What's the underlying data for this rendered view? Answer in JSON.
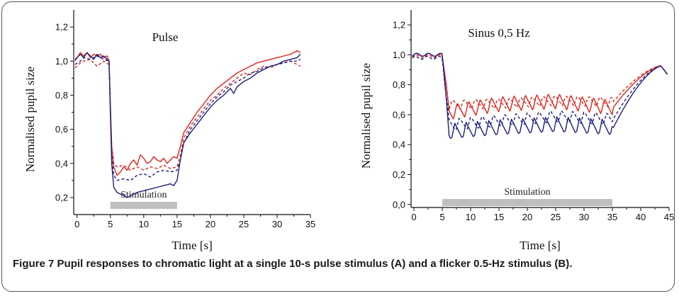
{
  "caption": {
    "label": "Figure 7",
    "text": "Pupil responses to chromatic light at a single 10-s pulse stimulus (A) and a flicker 0.5-Hz stimulus (B)."
  },
  "colors": {
    "red": "#e2231a",
    "blue": "#1d1e7c",
    "stim_bar": "#bfbfbf"
  },
  "chart_data": [
    {
      "type": "line",
      "title": "Pulse",
      "xlabel": "Time [s]",
      "ylabel": "Normalised pupil size",
      "xlim": [
        -0.5,
        35
      ],
      "ylim": [
        0.1,
        1.3
      ],
      "xticks": [
        0,
        5,
        10,
        15,
        20,
        25,
        30,
        35
      ],
      "yticks": [
        "0,2",
        "0,4",
        "0,6",
        "0,8",
        "1,0",
        "1,2"
      ],
      "ytick_values": [
        0.2,
        0.4,
        0.6,
        0.8,
        1.0,
        1.2
      ],
      "stimulation": {
        "label": "Stimulation",
        "start": 5,
        "end": 15
      },
      "series": [
        {
          "color": "#e2231a",
          "dash": false,
          "x": [
            -0.3,
            0.5,
            1,
            1.5,
            2,
            2.5,
            3,
            3.5,
            4,
            4.5,
            4.8,
            5,
            5.2,
            5.5,
            6,
            6.5,
            7,
            7.5,
            8,
            8.5,
            9,
            9.5,
            10,
            10.5,
            11,
            11.5,
            12,
            12.5,
            13,
            13.5,
            14,
            14.5,
            15,
            15.5,
            16,
            17,
            18,
            19,
            20,
            21,
            22,
            23,
            24,
            25,
            26,
            27,
            28,
            29,
            30,
            31,
            32,
            33,
            33.5
          ],
          "y": [
            1.0,
            1.05,
            1.03,
            1.05,
            1.02,
            1.04,
            1.03,
            1.04,
            1.02,
            1.03,
            1.0,
            0.75,
            0.5,
            0.38,
            0.33,
            0.35,
            0.38,
            0.36,
            0.4,
            0.42,
            0.39,
            0.45,
            0.43,
            0.4,
            0.41,
            0.44,
            0.42,
            0.41,
            0.43,
            0.4,
            0.42,
            0.44,
            0.43,
            0.5,
            0.58,
            0.64,
            0.7,
            0.75,
            0.8,
            0.84,
            0.87,
            0.9,
            0.93,
            0.95,
            0.97,
            0.99,
            1.0,
            1.01,
            1.02,
            1.03,
            1.04,
            1.06,
            1.05
          ]
        },
        {
          "color": "#e2231a",
          "dash": true,
          "x": [
            -0.3,
            0.5,
            1,
            2,
            3,
            4,
            4.8,
            5,
            5.2,
            5.5,
            6,
            7,
            8,
            9,
            10,
            11,
            12,
            13,
            14,
            15,
            15.5,
            16,
            17,
            18,
            19,
            20,
            21,
            22,
            23,
            24,
            25,
            26,
            27,
            28,
            29,
            30,
            31,
            32,
            33,
            33.5
          ],
          "y": [
            0.96,
            0.99,
            1.0,
            1.01,
            0.97,
            1.0,
            0.98,
            0.72,
            0.5,
            0.4,
            0.38,
            0.39,
            0.36,
            0.38,
            0.36,
            0.38,
            0.37,
            0.39,
            0.37,
            0.38,
            0.45,
            0.55,
            0.62,
            0.67,
            0.72,
            0.77,
            0.8,
            0.84,
            0.87,
            0.9,
            0.93,
            0.92,
            0.95,
            0.97,
            0.96,
            0.98,
            0.99,
            1.0,
            0.98,
            0.97
          ]
        },
        {
          "color": "#1d1e7c",
          "dash": true,
          "x": [
            -0.3,
            0.5,
            1,
            2,
            3,
            4,
            4.8,
            5,
            5.2,
            5.5,
            6,
            7,
            8,
            9,
            10,
            11,
            12,
            13,
            14,
            15,
            15.5,
            16,
            17,
            18,
            19,
            20,
            21,
            22,
            23,
            24,
            25,
            26,
            27,
            28,
            29,
            30,
            31,
            32,
            33,
            33.5
          ],
          "y": [
            0.98,
            1.0,
            1.02,
            1.01,
            1.03,
            1.01,
            1.0,
            0.72,
            0.45,
            0.33,
            0.3,
            0.31,
            0.3,
            0.33,
            0.34,
            0.32,
            0.35,
            0.36,
            0.35,
            0.36,
            0.42,
            0.52,
            0.6,
            0.65,
            0.7,
            0.75,
            0.79,
            0.82,
            0.86,
            0.88,
            0.9,
            0.93,
            0.94,
            0.96,
            0.97,
            0.98,
            0.99,
            1.0,
            1.0,
            1.01
          ]
        },
        {
          "color": "#1d1e7c",
          "dash": false,
          "x": [
            -0.3,
            0.5,
            1,
            1.5,
            2,
            2.5,
            3,
            3.5,
            4,
            4.5,
            4.8,
            5,
            5.2,
            5.5,
            6,
            6.5,
            7,
            7.5,
            8,
            9,
            10,
            11,
            12,
            13,
            14,
            14.5,
            15,
            15.5,
            16,
            17,
            18,
            19,
            20,
            21,
            22,
            23,
            23.5,
            24,
            25,
            26,
            27,
            28,
            29,
            30,
            31,
            32,
            33,
            33.5
          ],
          "y": [
            1.01,
            1.04,
            1.02,
            1.05,
            1.03,
            1.01,
            1.04,
            1.02,
            1.03,
            1.01,
            1.0,
            0.7,
            0.4,
            0.26,
            0.23,
            0.22,
            0.21,
            0.2,
            0.21,
            0.23,
            0.24,
            0.25,
            0.26,
            0.27,
            0.28,
            0.27,
            0.3,
            0.42,
            0.52,
            0.58,
            0.63,
            0.68,
            0.73,
            0.77,
            0.8,
            0.84,
            0.81,
            0.85,
            0.88,
            0.9,
            0.93,
            0.95,
            0.97,
            0.98,
            1.0,
            1.01,
            1.02,
            1.04
          ]
        }
      ]
    },
    {
      "type": "line",
      "title": "Sinus 0,5 Hz",
      "xlabel": "Time [s]",
      "ylabel": "Normalised pupil size",
      "xlim": [
        -0.5,
        45
      ],
      "ylim": [
        -0.02,
        1.3
      ],
      "xticks": [
        0,
        5,
        10,
        15,
        20,
        25,
        30,
        35,
        40,
        45
      ],
      "yticks": [
        "0,0",
        "0,2",
        "0,4",
        "0,6",
        "0,8",
        "1,0",
        "1,2"
      ],
      "ytick_values": [
        0.0,
        0.2,
        0.4,
        0.6,
        0.8,
        1.0,
        1.2
      ],
      "stimulation": {
        "label": "Stimulation",
        "start": 5,
        "end": 35
      },
      "flicker": {
        "start": 5,
        "end": 35,
        "period": 2
      },
      "series": [
        {
          "color": "#e2231a",
          "dash": false,
          "base": [
            1.0,
            0.6,
            0.66,
            0.68,
            0.64
          ],
          "amp": 0.11,
          "phase": 0.0
        },
        {
          "color": "#e2231a",
          "dash": true,
          "base": [
            0.99,
            0.66,
            0.67,
            0.69,
            0.68
          ],
          "amp": 0.07,
          "phase": 0.4
        },
        {
          "color": "#1d1e7c",
          "dash": true,
          "base": [
            0.98,
            0.52,
            0.55,
            0.58,
            0.56
          ],
          "amp": 0.09,
          "phase": 0.8
        },
        {
          "color": "#1d1e7c",
          "dash": false,
          "base": [
            1.0,
            0.47,
            0.5,
            0.52,
            0.5
          ],
          "amp": 0.11,
          "phase": 0.2
        }
      ]
    }
  ]
}
